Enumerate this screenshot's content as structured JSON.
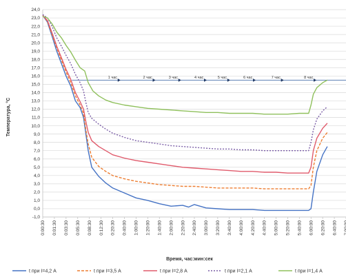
{
  "chart_data": {
    "type": "line",
    "title": "",
    "xlabel": "Время, час:мин:сек",
    "ylabel": "Температура, °С",
    "ylim": [
      -1.0,
      24.0
    ],
    "ytick_step": 1.0,
    "yticks": [
      "-1,0",
      "0,0",
      "1,0",
      "2,0",
      "3,0",
      "4,0",
      "5,0",
      "6,0",
      "7,0",
      "8,0",
      "9,0",
      "10,0",
      "11,0",
      "12,0",
      "13,0",
      "14,0",
      "15,0",
      "16,0",
      "17,0",
      "18,0",
      "19,0",
      "20,0",
      "21,0",
      "22,0",
      "23,0",
      "24,0"
    ],
    "x_unit": "minutes",
    "xlim": [
      0,
      520
    ],
    "xticks": [
      {
        "t": 0,
        "label": "0:00:30"
      },
      {
        "t": 20,
        "label": "0:01:30"
      },
      {
        "t": 40,
        "label": "0:03:30"
      },
      {
        "t": 60,
        "label": "0:05:30"
      },
      {
        "t": 80,
        "label": "0:08:30"
      },
      {
        "t": 100,
        "label": "0:12:30"
      },
      {
        "t": 120,
        "label": "0:20:30"
      },
      {
        "t": 140,
        "label": "0:40:00"
      },
      {
        "t": 160,
        "label": "1:00:00"
      },
      {
        "t": 180,
        "label": "1:20:00"
      },
      {
        "t": 200,
        "label": "1:40:00"
      },
      {
        "t": 220,
        "label": "2:00:00"
      },
      {
        "t": 240,
        "label": "2:20:00"
      },
      {
        "t": 260,
        "label": "2:40:00"
      },
      {
        "t": 280,
        "label": "3:00:00"
      },
      {
        "t": 300,
        "label": "3:20:00"
      },
      {
        "t": 320,
        "label": "3:40:00"
      },
      {
        "t": 340,
        "label": "4:00:00"
      },
      {
        "t": 360,
        "label": "4:20:00"
      },
      {
        "t": 380,
        "label": "4:40:00"
      },
      {
        "t": 400,
        "label": "5:00:00"
      },
      {
        "t": 420,
        "label": "5:20:00"
      },
      {
        "t": 440,
        "label": "5:40:00"
      },
      {
        "t": 460,
        "label": "6:00:00"
      },
      {
        "t": 480,
        "label": "6:20:00"
      },
      {
        "t": 500,
        "label": "6:40:00"
      },
      {
        "t": 520,
        "label": "7:00:00"
      }
    ],
    "grid": true,
    "legend_position": "bottom",
    "series": [
      {
        "name": "t при I=4,2 А",
        "color": "#4472c4",
        "dash": "solid",
        "points": [
          [
            0,
            23.3
          ],
          [
            8,
            22.5
          ],
          [
            16,
            20.8
          ],
          [
            24,
            19.0
          ],
          [
            32,
            17.5
          ],
          [
            40,
            16.0
          ],
          [
            48,
            14.8
          ],
          [
            56,
            13.0
          ],
          [
            64,
            12.2
          ],
          [
            70,
            11.0
          ],
          [
            74,
            9.0
          ],
          [
            78,
            7.0
          ],
          [
            84,
            5.0
          ],
          [
            96,
            3.9
          ],
          [
            108,
            3.1
          ],
          [
            120,
            2.5
          ],
          [
            140,
            1.9
          ],
          [
            160,
            1.3
          ],
          [
            180,
            1.0
          ],
          [
            200,
            0.6
          ],
          [
            220,
            0.3
          ],
          [
            240,
            0.4
          ],
          [
            250,
            0.2
          ],
          [
            260,
            0.5
          ],
          [
            280,
            0.1
          ],
          [
            300,
            0.0
          ],
          [
            320,
            -0.1
          ],
          [
            340,
            -0.1
          ],
          [
            360,
            -0.1
          ],
          [
            380,
            -0.2
          ],
          [
            400,
            -0.2
          ],
          [
            420,
            -0.2
          ],
          [
            440,
            -0.2
          ],
          [
            456,
            -0.2
          ],
          [
            460,
            0.0
          ],
          [
            464,
            2.0
          ],
          [
            470,
            4.5
          ],
          [
            480,
            6.5
          ],
          [
            488,
            7.5
          ]
        ]
      },
      {
        "name": "t при I=3,5 А",
        "color": "#ed7d31",
        "dash": "4,2",
        "points": [
          [
            0,
            23.3
          ],
          [
            8,
            22.6
          ],
          [
            16,
            21.0
          ],
          [
            24,
            19.4
          ],
          [
            32,
            17.9
          ],
          [
            40,
            16.5
          ],
          [
            48,
            15.2
          ],
          [
            56,
            13.6
          ],
          [
            64,
            12.5
          ],
          [
            70,
            11.5
          ],
          [
            74,
            9.5
          ],
          [
            78,
            7.8
          ],
          [
            84,
            6.2
          ],
          [
            96,
            5.1
          ],
          [
            108,
            4.5
          ],
          [
            120,
            4.0
          ],
          [
            140,
            3.6
          ],
          [
            160,
            3.3
          ],
          [
            180,
            3.1
          ],
          [
            200,
            2.9
          ],
          [
            220,
            2.8
          ],
          [
            240,
            2.7
          ],
          [
            260,
            2.7
          ],
          [
            280,
            2.6
          ],
          [
            300,
            2.5
          ],
          [
            320,
            2.5
          ],
          [
            340,
            2.5
          ],
          [
            360,
            2.5
          ],
          [
            380,
            2.4
          ],
          [
            400,
            2.4
          ],
          [
            420,
            2.4
          ],
          [
            440,
            2.4
          ],
          [
            456,
            2.4
          ],
          [
            460,
            2.8
          ],
          [
            464,
            5.0
          ],
          [
            470,
            7.0
          ],
          [
            480,
            8.5
          ],
          [
            488,
            9.2
          ]
        ]
      },
      {
        "name": "t при I=2,8 А",
        "color": "#e05a6b",
        "dash": "solid",
        "points": [
          [
            0,
            23.3
          ],
          [
            8,
            22.7
          ],
          [
            16,
            21.2
          ],
          [
            24,
            19.6
          ],
          [
            32,
            18.2
          ],
          [
            40,
            16.8
          ],
          [
            48,
            15.6
          ],
          [
            56,
            14.0
          ],
          [
            64,
            12.9
          ],
          [
            70,
            12.0
          ],
          [
            74,
            10.5
          ],
          [
            78,
            9.2
          ],
          [
            84,
            8.2
          ],
          [
            96,
            7.5
          ],
          [
            108,
            7.0
          ],
          [
            120,
            6.5
          ],
          [
            140,
            6.1
          ],
          [
            160,
            5.8
          ],
          [
            180,
            5.6
          ],
          [
            200,
            5.4
          ],
          [
            220,
            5.2
          ],
          [
            240,
            5.0
          ],
          [
            260,
            4.9
          ],
          [
            280,
            4.8
          ],
          [
            300,
            4.7
          ],
          [
            320,
            4.6
          ],
          [
            340,
            4.5
          ],
          [
            360,
            4.5
          ],
          [
            380,
            4.4
          ],
          [
            400,
            4.4
          ],
          [
            420,
            4.3
          ],
          [
            440,
            4.3
          ],
          [
            456,
            4.3
          ],
          [
            460,
            5.0
          ],
          [
            464,
            7.0
          ],
          [
            470,
            8.5
          ],
          [
            480,
            9.7
          ],
          [
            488,
            10.3
          ]
        ]
      },
      {
        "name": "t при I=2,1 А",
        "color": "#7b5ea7",
        "dash": "2,2",
        "points": [
          [
            0,
            23.4
          ],
          [
            8,
            23.0
          ],
          [
            16,
            22.0
          ],
          [
            24,
            20.6
          ],
          [
            32,
            19.6
          ],
          [
            40,
            18.5
          ],
          [
            48,
            17.5
          ],
          [
            56,
            16.2
          ],
          [
            64,
            15.2
          ],
          [
            70,
            14.2
          ],
          [
            74,
            12.8
          ],
          [
            78,
            11.6
          ],
          [
            84,
            10.9
          ],
          [
            96,
            10.2
          ],
          [
            108,
            9.6
          ],
          [
            120,
            9.1
          ],
          [
            140,
            8.6
          ],
          [
            160,
            8.2
          ],
          [
            180,
            8.0
          ],
          [
            200,
            7.8
          ],
          [
            220,
            7.6
          ],
          [
            240,
            7.5
          ],
          [
            260,
            7.4
          ],
          [
            280,
            7.3
          ],
          [
            300,
            7.2
          ],
          [
            320,
            7.2
          ],
          [
            340,
            7.1
          ],
          [
            360,
            7.1
          ],
          [
            380,
            7.0
          ],
          [
            400,
            7.0
          ],
          [
            420,
            7.0
          ],
          [
            440,
            7.0
          ],
          [
            456,
            7.0
          ],
          [
            460,
            8.0
          ],
          [
            464,
            9.5
          ],
          [
            470,
            10.8
          ],
          [
            480,
            11.8
          ],
          [
            488,
            12.3
          ]
        ]
      },
      {
        "name": "t при I=1,4 А",
        "color": "#8fc05c",
        "dash": "solid",
        "points": [
          [
            0,
            23.2
          ],
          [
            8,
            23.0
          ],
          [
            16,
            22.3
          ],
          [
            24,
            21.3
          ],
          [
            32,
            20.6
          ],
          [
            40,
            19.7
          ],
          [
            48,
            18.9
          ],
          [
            56,
            17.9
          ],
          [
            64,
            17.0
          ],
          [
            72,
            16.6
          ],
          [
            78,
            15.2
          ],
          [
            86,
            14.2
          ],
          [
            96,
            13.6
          ],
          [
            108,
            13.1
          ],
          [
            120,
            12.8
          ],
          [
            140,
            12.5
          ],
          [
            160,
            12.3
          ],
          [
            180,
            12.1
          ],
          [
            200,
            12.0
          ],
          [
            220,
            11.9
          ],
          [
            240,
            11.8
          ],
          [
            260,
            11.7
          ],
          [
            280,
            11.6
          ],
          [
            300,
            11.6
          ],
          [
            320,
            11.5
          ],
          [
            340,
            11.5
          ],
          [
            360,
            11.5
          ],
          [
            380,
            11.4
          ],
          [
            400,
            11.4
          ],
          [
            420,
            11.4
          ],
          [
            440,
            11.5
          ],
          [
            456,
            11.5
          ],
          [
            460,
            12.5
          ],
          [
            464,
            13.8
          ],
          [
            470,
            14.6
          ],
          [
            480,
            15.2
          ],
          [
            488,
            15.5
          ]
        ]
      }
    ],
    "annotations": {
      "arrow_y": 15.5,
      "hour_labels": [
        {
          "label": "1 час",
          "t": 112
        },
        {
          "label": "2 час",
          "t": 172
        },
        {
          "label": "3 час",
          "t": 216
        },
        {
          "label": "4 час",
          "t": 260
        },
        {
          "label": "5 час",
          "t": 300
        },
        {
          "label": "6 час",
          "t": 344
        },
        {
          "label": "7 час",
          "t": 392
        },
        {
          "label": "8 час",
          "t": 448
        }
      ]
    }
  }
}
